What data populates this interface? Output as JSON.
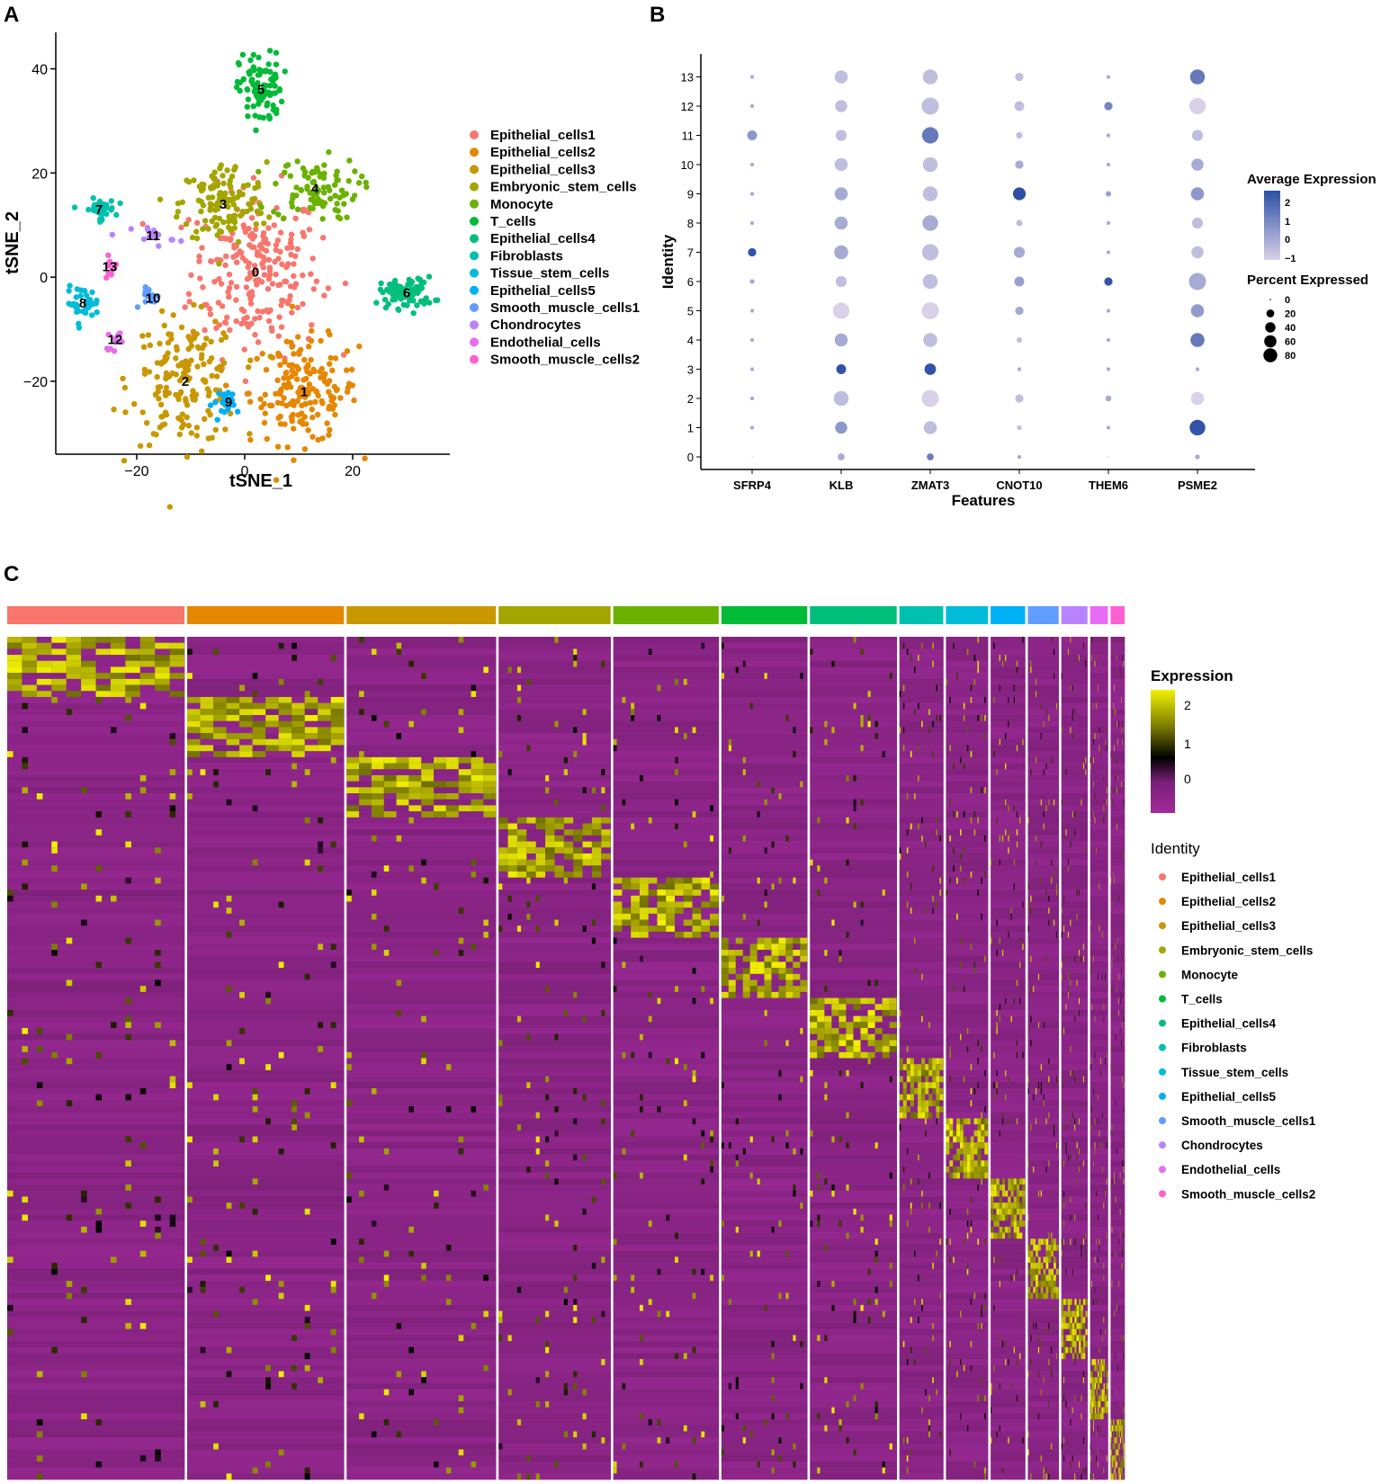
{
  "panels": {
    "a": "A",
    "b": "B",
    "c": "C"
  },
  "colors": {
    "clusters": [
      "#F8766D",
      "#E58700",
      "#C99800",
      "#A3A500",
      "#6BB100",
      "#00BA38",
      "#00BF7D",
      "#00C0AF",
      "#00BCD8",
      "#00B0F6",
      "#619CFF",
      "#B983FF",
      "#E76BF3",
      "#FD61D1"
    ],
    "avg_low": "#D9D1E8",
    "avg_high": "#2D4FA5",
    "heat_low": "#A12B9C",
    "heat_mid": "#000000",
    "heat_high": "#F2F200"
  },
  "chart_data": [
    {
      "type": "scatter",
      "title": "",
      "xlabel": "tSNE_1",
      "ylabel": "tSNE_2",
      "xlim": [
        -35,
        38
      ],
      "ylim": [
        -34,
        47
      ],
      "xticks": [
        "−20",
        "0",
        "20"
      ],
      "xtick_values": [
        -20,
        0,
        20
      ],
      "yticks": [
        "40",
        "20",
        "0",
        "−20"
      ],
      "ytick_values": [
        40,
        20,
        0,
        -20
      ],
      "legend": [
        "Epithelial_cells1",
        "Epithelial_cells2",
        "Epithelial_cells3",
        "Embryonic_stem_cells",
        "Monocyte",
        "T_cells",
        "Epithelial_cells4",
        "Fibroblasts",
        "Tissue_stem_cells",
        "Epithelial_cells5",
        "Smooth_muscle_cells1",
        "Chondrocytes",
        "Endothelial_cells",
        "Smooth_muscle_cells2"
      ],
      "cluster_labels": [
        {
          "label": "0",
          "x": 2,
          "y": 1,
          "sx": 6,
          "sy": 8,
          "n": 230
        },
        {
          "label": "1",
          "x": 11,
          "y": -22,
          "sx": 5,
          "sy": 5,
          "n": 170
        },
        {
          "label": "2",
          "x": -11,
          "y": -20,
          "sx": 5,
          "sy": 6,
          "n": 170
        },
        {
          "label": "3",
          "x": -4,
          "y": 14,
          "sx": 4,
          "sy": 4,
          "n": 130
        },
        {
          "label": "4",
          "x": 13,
          "y": 17,
          "sx": 4,
          "sy": 3,
          "n": 90
        },
        {
          "label": "5",
          "x": 3,
          "y": 36,
          "sx": 2,
          "sy": 3.5,
          "n": 90
        },
        {
          "label": "6",
          "x": 30,
          "y": -3,
          "sx": 2.5,
          "sy": 1.5,
          "n": 80
        },
        {
          "label": "7",
          "x": -27,
          "y": 13,
          "sx": 1.5,
          "sy": 1,
          "n": 40
        },
        {
          "label": "8",
          "x": -30,
          "y": -5,
          "sx": 1.5,
          "sy": 1.5,
          "n": 35
        },
        {
          "label": "9",
          "x": -3,
          "y": -24,
          "sx": 1.5,
          "sy": 1.2,
          "n": 25
        },
        {
          "label": "10",
          "x": -17,
          "y": -4,
          "sx": 1,
          "sy": 1,
          "n": 15
        },
        {
          "label": "11",
          "x": -17,
          "y": 8,
          "sx": 2,
          "sy": 1,
          "n": 15
        },
        {
          "label": "12",
          "x": -24,
          "y": -12,
          "sx": 0.7,
          "sy": 1,
          "n": 10
        },
        {
          "label": "13",
          "x": -25,
          "y": 2,
          "sx": 0.7,
          "sy": 1,
          "n": 10
        }
      ]
    },
    {
      "type": "scatter",
      "subtype": "dotplot",
      "xlabel": "Features",
      "ylabel": "Identity",
      "features": [
        "SFRP4",
        "KLB",
        "ZMAT3",
        "CNOT10",
        "THEM6",
        "PSME2"
      ],
      "identities": [
        "0",
        "1",
        "2",
        "3",
        "4",
        "5",
        "6",
        "7",
        "8",
        "9",
        "10",
        "11",
        "12",
        "13"
      ],
      "percent_expressed": [
        [
          0,
          6,
          6,
          1,
          0,
          2
        ],
        [
          1,
          25,
          30,
          2,
          1,
          45
        ],
        [
          1,
          40,
          55,
          10,
          4,
          30
        ],
        [
          1,
          15,
          22,
          1,
          1,
          1
        ],
        [
          1,
          30,
          35,
          3,
          1,
          35
        ],
        [
          1,
          50,
          55,
          10,
          1,
          30
        ],
        [
          2,
          20,
          40,
          15,
          10,
          55
        ],
        [
          10,
          35,
          50,
          20,
          1,
          25
        ],
        [
          1,
          30,
          45,
          5,
          1,
          20
        ],
        [
          1,
          30,
          40,
          28,
          3,
          30
        ],
        [
          1,
          30,
          40,
          10,
          1,
          25
        ],
        [
          15,
          20,
          50,
          5,
          1,
          20
        ],
        [
          1,
          25,
          55,
          15,
          10,
          50
        ],
        [
          1,
          30,
          40,
          10,
          1,
          40
        ]
      ],
      "average_expression": [
        [
          0,
          0,
          1.2,
          0,
          0,
          0
        ],
        [
          0,
          0.5,
          -0.5,
          -0.5,
          0,
          2.3
        ],
        [
          0,
          -0.5,
          -1,
          -0.5,
          0,
          -1
        ],
        [
          0,
          2.3,
          2.3,
          0,
          0,
          0
        ],
        [
          0,
          0,
          -0.5,
          -0.5,
          0,
          1.3
        ],
        [
          0,
          -1,
          -1,
          0,
          0,
          0.4
        ],
        [
          0,
          -0.5,
          -0.5,
          0.3,
          2.3,
          0
        ],
        [
          2.3,
          0,
          -0.5,
          0,
          0,
          -0.5
        ],
        [
          0,
          0,
          0,
          -0.5,
          0,
          -0.5
        ],
        [
          0,
          0,
          -0.5,
          2.4,
          0.3,
          0.5
        ],
        [
          0,
          -0.5,
          -0.5,
          0,
          0,
          0
        ],
        [
          0.5,
          -0.5,
          1.3,
          -0.5,
          0,
          -0.5
        ],
        [
          0,
          -0.5,
          -0.5,
          -0.5,
          1,
          -1
        ],
        [
          0,
          -0.5,
          -0.5,
          -0.5,
          0,
          1.3
        ]
      ],
      "avg_legend": {
        "title": "Average Expression",
        "ticks": [
          "2",
          "1",
          "0",
          "−1"
        ],
        "range": [
          -1,
          2.4
        ]
      },
      "pct_legend": {
        "title": "Percent Expressed",
        "ticks": [
          "0",
          "20",
          "40",
          "60",
          "80"
        ]
      }
    },
    {
      "type": "heatmap",
      "title": "",
      "groups": [
        "Epithelial_cells1",
        "Epithelial_cells2",
        "Epithelial_cells3",
        "Embryonic_stem_cells",
        "Monocyte",
        "T_cells",
        "Epithelial_cells4",
        "Fibroblasts",
        "Tissue_stem_cells",
        "Epithelial_cells5",
        "Smooth_muscle_cells1",
        "Chondrocytes",
        "Endothelial_cells",
        "Smooth_muscle_cells2"
      ],
      "group_cell_counts": [
        190,
        168,
        160,
        120,
        113,
        92,
        93,
        47,
        45,
        37,
        33,
        28,
        19,
        15
      ],
      "genes_per_block": 10,
      "legend_title": "Expression",
      "legend_ticks": [
        "2",
        "1",
        "0"
      ],
      "value_range": [
        -0.7,
        2.4
      ],
      "identity_title": "Identity"
    }
  ]
}
